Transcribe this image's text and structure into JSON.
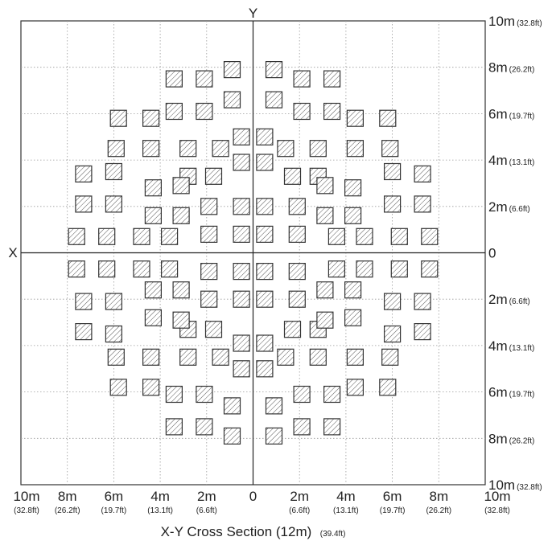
{
  "axes": {
    "y_name": "Y",
    "x_name": "X"
  },
  "right_labels": [
    {
      "m": "10m",
      "ft": "(32.8ft)"
    },
    {
      "m": "8m",
      "ft": "(26.2ft)"
    },
    {
      "m": "6m",
      "ft": "(19.7ft)"
    },
    {
      "m": "4m",
      "ft": "(13.1ft)"
    },
    {
      "m": "2m",
      "ft": "(6.6ft)"
    },
    {
      "m": "0",
      "ft": ""
    },
    {
      "m": "2m",
      "ft": "(6.6ft)"
    },
    {
      "m": "4m",
      "ft": "(13.1ft)"
    },
    {
      "m": "6m",
      "ft": "(19.7ft)"
    },
    {
      "m": "8m",
      "ft": "(26.2ft)"
    },
    {
      "m": "10m",
      "ft": "(32.8ft)"
    }
  ],
  "bottom_labels": [
    {
      "m": "10m",
      "ft": "(32.8ft)"
    },
    {
      "m": "8m",
      "ft": "(26.2ft)"
    },
    {
      "m": "6m",
      "ft": "(19.7ft)"
    },
    {
      "m": "4m",
      "ft": "(13.1ft)"
    },
    {
      "m": "2m",
      "ft": "(6.6ft)"
    },
    {
      "m": "0",
      "ft": ""
    },
    {
      "m": "2m",
      "ft": "(6.6ft)"
    },
    {
      "m": "4m",
      "ft": "(13.1ft)"
    },
    {
      "m": "6m",
      "ft": "(19.7ft)"
    },
    {
      "m": "8m",
      "ft": "(26.2ft)"
    },
    {
      "m": "10m",
      "ft": "(32.8ft)"
    }
  ],
  "caption": {
    "main": "X-Y Cross Section (12m)",
    "sub": "(39.4ft)"
  },
  "beam_positions_m": {
    "upper_right_quadrant": [
      [
        0.9,
        7.9
      ],
      [
        2.1,
        7.5
      ],
      [
        3.4,
        7.5
      ],
      [
        0.9,
        6.6
      ],
      [
        2.1,
        6.1
      ],
      [
        3.4,
        6.1
      ],
      [
        4.4,
        5.8
      ],
      [
        5.8,
        5.8
      ],
      [
        0.5,
        5.0
      ],
      [
        1.4,
        4.5
      ],
      [
        2.8,
        4.5
      ],
      [
        4.4,
        4.5
      ],
      [
        5.9,
        4.5
      ],
      [
        0.5,
        3.9
      ],
      [
        1.7,
        3.3
      ],
      [
        2.8,
        3.3
      ],
      [
        3.1,
        2.9
      ],
      [
        4.3,
        2.8
      ],
      [
        6.0,
        3.5
      ],
      [
        7.3,
        3.4
      ],
      [
        0.5,
        2.0
      ],
      [
        1.9,
        2.0
      ],
      [
        3.1,
        1.6
      ],
      [
        4.3,
        1.6
      ],
      [
        6.0,
        2.1
      ],
      [
        7.3,
        2.1
      ],
      [
        0.5,
        0.8
      ],
      [
        1.9,
        0.8
      ],
      [
        3.6,
        0.7
      ],
      [
        4.8,
        0.7
      ],
      [
        6.3,
        0.7
      ],
      [
        7.6,
        0.7
      ]
    ]
  }
}
